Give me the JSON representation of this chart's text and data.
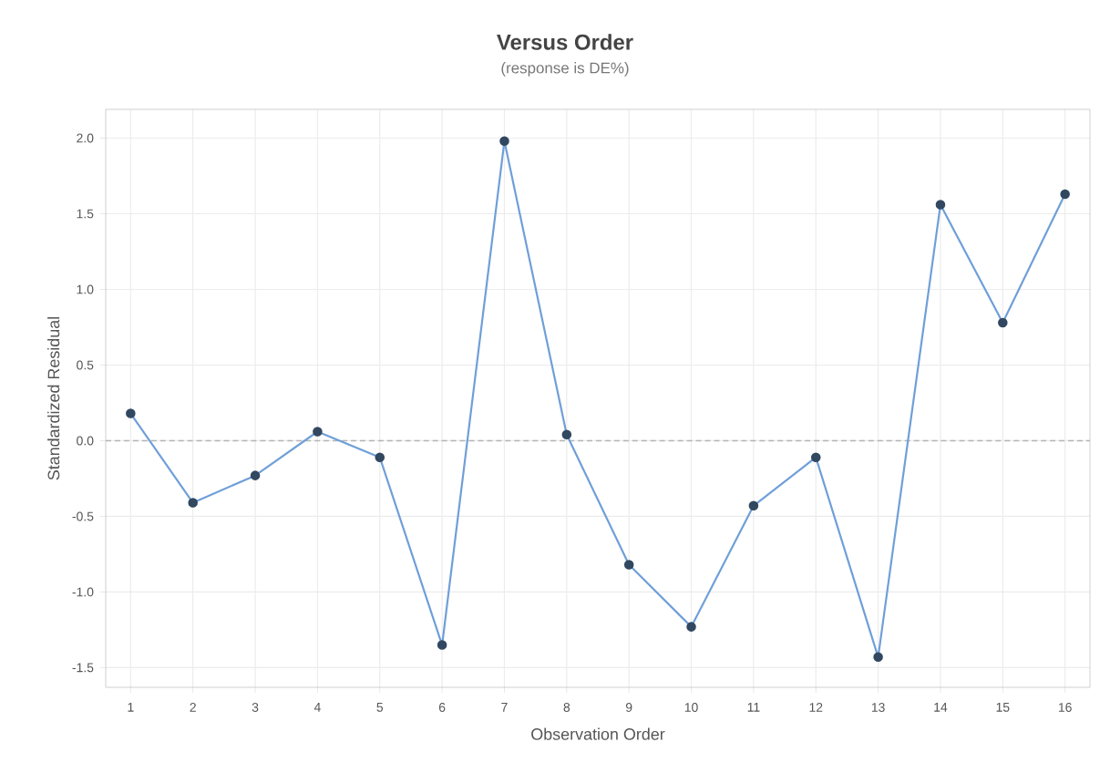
{
  "chart_data": {
    "type": "line",
    "title": "Versus Order",
    "subtitle": "(response is DE%)",
    "xlabel": "Observation Order",
    "ylabel": "Standardized Residual",
    "x": [
      1,
      2,
      3,
      4,
      5,
      6,
      7,
      8,
      9,
      10,
      11,
      12,
      13,
      14,
      15,
      16
    ],
    "series": [
      {
        "color": "#6f9fd8",
        "values": [
          0.18,
          -0.41,
          -0.23,
          0.06,
          -0.11,
          -1.35,
          1.98,
          0.04,
          -0.82,
          -1.23,
          -0.43,
          -0.11,
          -1.43,
          1.56,
          0.78,
          1.63
        ]
      }
    ],
    "xlim": [
      0.6,
      16.4
    ],
    "xticks": [
      1,
      2,
      3,
      4,
      5,
      6,
      7,
      8,
      9,
      10,
      11,
      12,
      13,
      14,
      15,
      16
    ],
    "ylim": [
      -1.63,
      2.19
    ],
    "yticks": [
      {
        "value": -1.5,
        "label": "-1.5"
      },
      {
        "value": -1,
        "label": "-1.0"
      },
      {
        "value": -0.5,
        "label": "-0.5"
      },
      {
        "value": 0,
        "label": "0.0"
      },
      {
        "value": 0.5,
        "label": "0.5"
      },
      {
        "value": 1,
        "label": "1.0"
      },
      {
        "value": 1.5,
        "label": "1.5"
      },
      {
        "value": 2,
        "label": "2.0"
      }
    ],
    "ref_lines": [
      {
        "axis": "y",
        "value": 0,
        "color": "#b4b4b4",
        "line_style": "dashed"
      }
    ],
    "grid": true,
    "marker": "circle",
    "line_style": "solid"
  }
}
